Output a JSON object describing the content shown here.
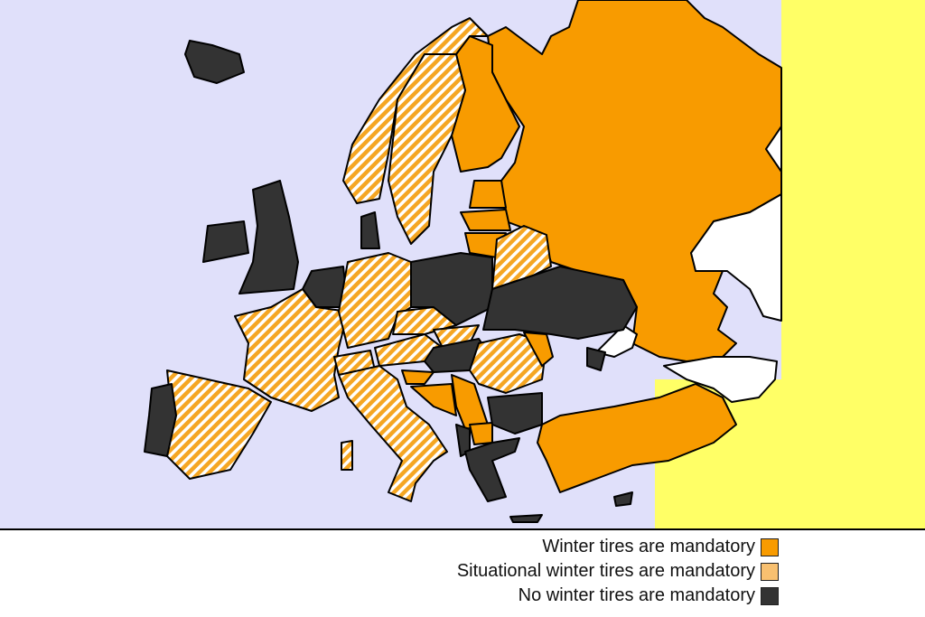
{
  "colors": {
    "sea": "#e0e0fa",
    "outside": "#ffff66",
    "mandatory": "#f89b00",
    "situational": "#f8c070",
    "none": "#333333",
    "no_data": "#ffffff"
  },
  "legend": [
    {
      "label": "Winter tires are mandatory",
      "category": "mandatory"
    },
    {
      "label": "Situational winter tires are mandatory",
      "category": "situational"
    },
    {
      "label": "No winter tires are mandatory",
      "category": "none"
    }
  ]
}
